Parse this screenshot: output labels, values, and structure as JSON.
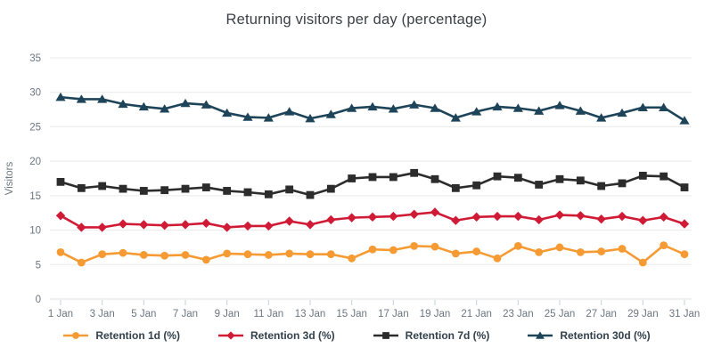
{
  "title": "Returning visitors per day (percentage)",
  "chart_data": {
    "type": "line",
    "title": "Returning visitors per day (percentage)",
    "xlabel": "",
    "ylabel": "Visitors",
    "ylim": [
      0,
      35
    ],
    "yticks": [
      0,
      5,
      10,
      15,
      20,
      25,
      30,
      35
    ],
    "grid": "horizontal",
    "legend_position": "bottom",
    "xtick_every": 2,
    "categories": [
      "1 Jan",
      "2 Jan",
      "3 Jan",
      "4 Jan",
      "5 Jan",
      "6 Jan",
      "7 Jan",
      "8 Jan",
      "9 Jan",
      "10 Jan",
      "11 Jan",
      "12 Jan",
      "13 Jan",
      "14 Jan",
      "15 Jan",
      "16 Jan",
      "17 Jan",
      "18 Jan",
      "19 Jan",
      "20 Jan",
      "21 Jan",
      "22 Jan",
      "23 Jan",
      "24 Jan",
      "25 Jan",
      "26 Jan",
      "27 Jan",
      "28 Jan",
      "29 Jan",
      "30 Jan",
      "31 Jan"
    ],
    "series": [
      {
        "name": "Retention 1d (%)",
        "marker": "circle",
        "color": "#F69A33",
        "values": [
          6.8,
          5.3,
          6.5,
          6.7,
          6.4,
          6.3,
          6.4,
          5.7,
          6.6,
          6.5,
          6.4,
          6.6,
          6.5,
          6.5,
          5.9,
          7.2,
          7.1,
          7.7,
          7.6,
          6.6,
          6.9,
          5.9,
          7.7,
          6.8,
          7.5,
          6.8,
          6.9,
          7.3,
          5.3,
          7.8,
          6.5
        ]
      },
      {
        "name": "Retention 3d (%)",
        "marker": "diamond",
        "color": "#D01B36",
        "values": [
          12.1,
          10.4,
          10.4,
          10.9,
          10.8,
          10.7,
          10.8,
          11.0,
          10.4,
          10.6,
          10.6,
          11.3,
          10.8,
          11.5,
          11.8,
          11.9,
          12.0,
          12.3,
          12.6,
          11.4,
          11.9,
          12.0,
          12.0,
          11.5,
          12.2,
          12.1,
          11.6,
          12.0,
          11.4,
          11.9,
          10.9
        ]
      },
      {
        "name": "Retention 7d (%)",
        "marker": "square",
        "color": "#2C2C2C",
        "values": [
          17.0,
          16.1,
          16.4,
          16.0,
          15.7,
          15.8,
          16.0,
          16.2,
          15.7,
          15.5,
          15.2,
          15.9,
          15.1,
          16.0,
          17.5,
          17.7,
          17.7,
          18.3,
          17.4,
          16.1,
          16.5,
          17.8,
          17.6,
          16.6,
          17.4,
          17.2,
          16.4,
          16.8,
          17.9,
          17.8,
          16.2
        ]
      },
      {
        "name": "Retention 30d (%)",
        "marker": "triangle",
        "color": "#1E4459",
        "values": [
          29.3,
          29.0,
          29.0,
          28.3,
          27.9,
          27.6,
          28.4,
          28.2,
          27.0,
          26.4,
          26.3,
          27.2,
          26.2,
          26.8,
          27.7,
          27.9,
          27.6,
          28.2,
          27.7,
          26.3,
          27.2,
          27.9,
          27.7,
          27.3,
          28.1,
          27.3,
          26.3,
          27.0,
          27.8,
          27.8,
          25.9
        ]
      }
    ]
  },
  "style": {
    "grid_color": "#E9E9E9",
    "baseline_color": "#DCE0E3",
    "tick_color": "#C6CFD6",
    "axis_text_color": "#6B7680",
    "title_color": "#3B4045",
    "legend_text_color": "#32414D"
  }
}
